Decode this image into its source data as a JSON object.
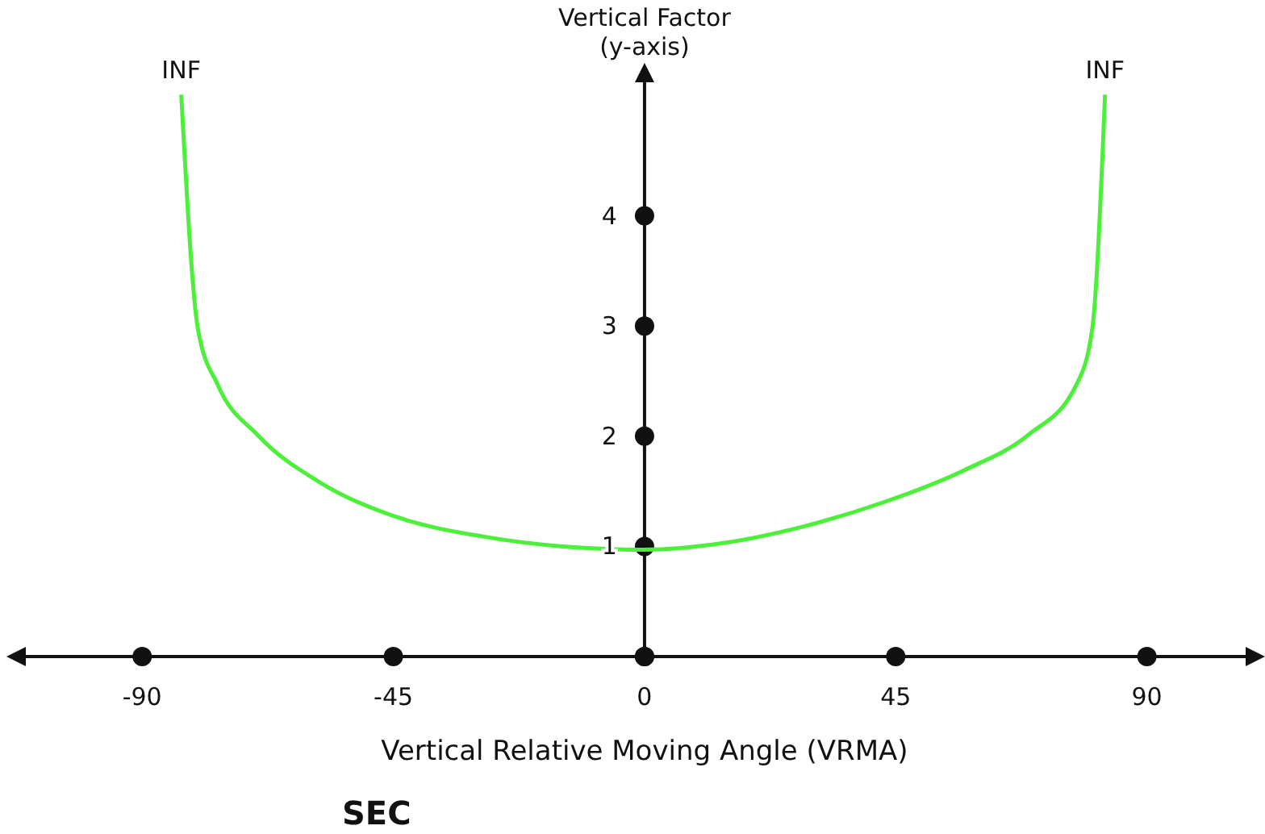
{
  "chart_data": {
    "type": "line",
    "ylabel": "Vertical Factor\n(y-axis)",
    "xlabel": "Vertical Relative Moving Angle (VRMA)",
    "annotations": [
      {
        "text": "INF",
        "x": -83,
        "y": 5.1
      },
      {
        "text": "INF",
        "x": 82.5,
        "y": 5.1
      },
      "SEC"
    ],
    "xlim": [
      -112,
      110
    ],
    "ylim": [
      0,
      5.3
    ],
    "xticks": [
      -90,
      -45,
      0,
      45,
      90
    ],
    "yticks": [
      {
        "value": 0,
        "label": null
      },
      1,
      2,
      3,
      4
    ],
    "grid": false,
    "series": [
      {
        "color": "#4cf03a",
        "x": [
          -83,
          -80,
          -76.4,
          -69.3,
          -57.8,
          -43.4,
          -29,
          -14.7,
          0,
          14.1,
          28.4,
          42.8,
          57.2,
          68.7,
          77.3,
          80.2,
          82.5
        ],
        "values": [
          5.1,
          2.97,
          2.46,
          2.01,
          1.57,
          1.25,
          1.09,
          1.0,
          0.97,
          1.03,
          1.18,
          1.4,
          1.69,
          2.01,
          2.46,
          2.97,
          5.1
        ]
      }
    ]
  }
}
